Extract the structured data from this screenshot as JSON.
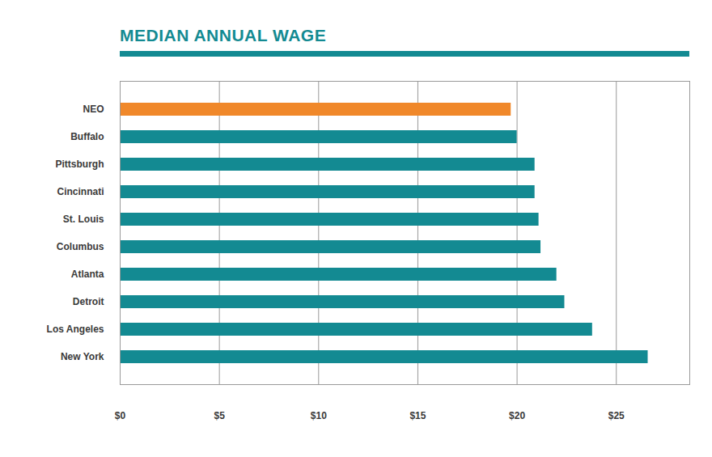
{
  "chart_data": {
    "type": "bar",
    "title": "MEDIAN ANNUAL WAGE",
    "orientation": "horizontal",
    "categories": [
      "NEO",
      "Buffalo",
      "Pittsburgh",
      "Cincinnati",
      "St. Louis",
      "Columbus",
      "Atlanta",
      "Detroit",
      "Los Angeles",
      "New York"
    ],
    "values": [
      19.7,
      20.0,
      20.9,
      20.9,
      21.1,
      21.2,
      22.0,
      22.4,
      23.8,
      26.6
    ],
    "colors": [
      "#f0882a",
      "#138a92",
      "#138a92",
      "#138a92",
      "#138a92",
      "#138a92",
      "#138a92",
      "#138a92",
      "#138a92",
      "#138a92"
    ],
    "xlim": [
      0,
      28.7
    ],
    "xticks": [
      {
        "value": 0,
        "label": "$0"
      },
      {
        "value": 5,
        "label": "$5"
      },
      {
        "value": 10,
        "label": "$10"
      },
      {
        "value": 15,
        "label": "$15"
      },
      {
        "value": 20,
        "label": "$20"
      },
      {
        "value": 25,
        "label": "$25"
      }
    ],
    "grid": true
  }
}
